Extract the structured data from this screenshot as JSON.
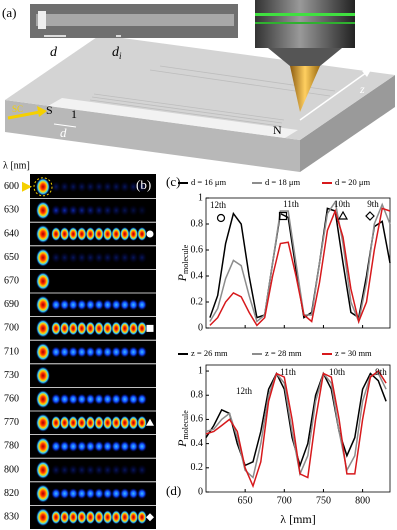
{
  "panel_a": {
    "label": "(a)",
    "micrograph": {
      "d": "d",
      "di": {
        "main": "d",
        "sub": "i"
      }
    },
    "diagram": {
      "sc": "SC",
      "s": "S",
      "one": "1",
      "d": "d",
      "n": "N",
      "z": "z"
    }
  },
  "panel_b": {
    "label": "(b)",
    "axis_label": "λ [nm]",
    "rows": [
      600,
      630,
      640,
      650,
      670,
      690,
      700,
      710,
      730,
      760,
      770,
      780,
      800,
      820,
      830
    ]
  },
  "chart_data": [
    {
      "type": "line",
      "panel_label": "(c)",
      "y_label": {
        "main": "P",
        "sub": "molecule"
      },
      "annotations": [
        "12th",
        "11th",
        "10th",
        "9th"
      ],
      "x": [
        605,
        615,
        625,
        635,
        645,
        655,
        665,
        675,
        685,
        695,
        705,
        715,
        725,
        735,
        745,
        755,
        765,
        775,
        785,
        795,
        805,
        815,
        825,
        835
      ],
      "series": [
        {
          "name": "d = 16 μm",
          "color": "#000000",
          "values": [
            0.08,
            0.25,
            0.65,
            0.88,
            0.8,
            0.4,
            0.08,
            0.1,
            0.5,
            0.88,
            0.85,
            0.45,
            0.08,
            0.12,
            0.5,
            0.92,
            0.9,
            0.5,
            0.12,
            0.08,
            0.4,
            0.78,
            0.82,
            0.5
          ]
        },
        {
          "name": "d = 18 μm",
          "color": "#8c8c8c",
          "values": [
            0.05,
            0.15,
            0.38,
            0.52,
            0.48,
            0.25,
            0.05,
            0.1,
            0.5,
            0.9,
            0.9,
            0.5,
            0.1,
            0.1,
            0.5,
            0.88,
            0.97,
            0.65,
            0.2,
            0.05,
            0.35,
            0.8,
            0.95,
            0.8
          ]
        },
        {
          "name": "d = 20 μm",
          "color": "#d7191c",
          "values": [
            0.02,
            0.08,
            0.2,
            0.27,
            0.24,
            0.12,
            0.02,
            0.08,
            0.4,
            0.65,
            0.66,
            0.4,
            0.1,
            0.05,
            0.35,
            0.75,
            0.9,
            0.7,
            0.3,
            0.05,
            0.2,
            0.6,
            0.92,
            0.9
          ]
        }
      ],
      "xlim": [
        600,
        835
      ],
      "ylim": [
        0,
        1.0
      ],
      "xticks": [
        650,
        700,
        750,
        800
      ],
      "yticks": [
        0,
        0.2,
        0.4,
        0.6,
        0.8,
        1
      ]
    },
    {
      "type": "line",
      "panel_label": "(d)",
      "y_label": {
        "main": "P",
        "sub": "molecule"
      },
      "x_label": "λ [mm]",
      "annotations": [
        "12th",
        "11th",
        "10th",
        "9th"
      ],
      "x": [
        600,
        610,
        620,
        630,
        640,
        650,
        660,
        670,
        680,
        690,
        700,
        710,
        720,
        730,
        740,
        750,
        760,
        770,
        780,
        790,
        800,
        810,
        820,
        830
      ],
      "series": [
        {
          "name": "z = 26 mm",
          "color": "#000000",
          "values": [
            0.45,
            0.55,
            0.68,
            0.65,
            0.4,
            0.22,
            0.25,
            0.5,
            0.85,
            0.98,
            0.85,
            0.45,
            0.22,
            0.4,
            0.8,
            0.98,
            0.85,
            0.5,
            0.3,
            0.45,
            0.85,
            0.98,
            0.92,
            0.75
          ]
        },
        {
          "name": "z = 28 mm",
          "color": "#8c8c8c",
          "values": [
            0.5,
            0.52,
            0.6,
            0.65,
            0.45,
            0.18,
            0.12,
            0.4,
            0.8,
            0.98,
            0.9,
            0.5,
            0.15,
            0.3,
            0.75,
            0.98,
            0.9,
            0.5,
            0.18,
            0.3,
            0.75,
            0.96,
            0.98,
            0.85
          ]
        },
        {
          "name": "z = 30 mm",
          "color": "#d7191c",
          "values": [
            0.48,
            0.5,
            0.55,
            0.6,
            0.5,
            0.2,
            0.05,
            0.25,
            0.75,
            0.98,
            0.95,
            0.6,
            0.15,
            0.12,
            0.6,
            0.98,
            0.95,
            0.6,
            0.15,
            0.15,
            0.6,
            0.95,
            1.0,
            0.9
          ]
        }
      ],
      "xlim": [
        600,
        835
      ],
      "ylim": [
        0,
        1.05
      ],
      "xticks": [
        650,
        700,
        750,
        800
      ],
      "yticks": [
        0,
        0.2,
        0.4,
        0.6,
        0.8,
        1
      ]
    }
  ]
}
